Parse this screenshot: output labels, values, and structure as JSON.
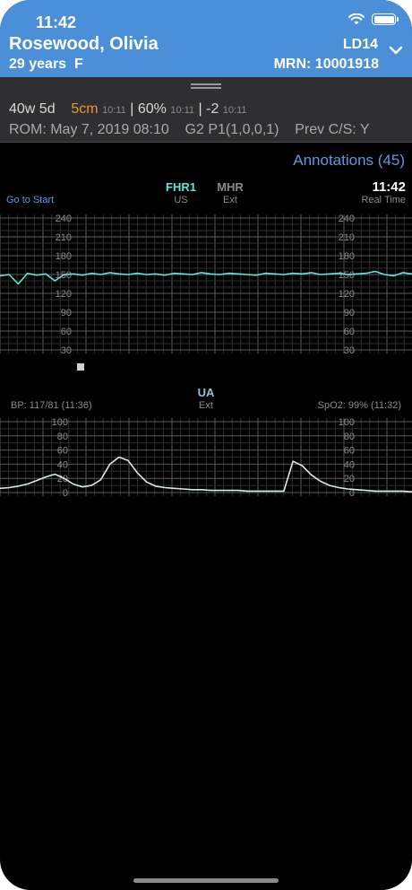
{
  "status_bar": {
    "time": "11:42"
  },
  "patient": {
    "name": "Rosewood, Olivia",
    "age_sex": "29 years  F",
    "room": "LD14",
    "mrn": "MRN: 10001918"
  },
  "labor": {
    "gestation": "40w 5d",
    "dilation": "5cm",
    "dilation_time": "10:11",
    "effacement": "60%",
    "effacement_time": "10:11",
    "station": "-2",
    "station_time": "10:11",
    "rom": "ROM: May 7, 2019 08:10",
    "gp": "G2 P1(1,0,0,1)",
    "prev_cs": "Prev C/S: Y"
  },
  "annotations_label": "Annotations (45)",
  "goto_label": "Go to Start",
  "fhr": {
    "primary_label": "FHR1",
    "primary_source": "US",
    "secondary_label": "MHR",
    "secondary_source": "Ext",
    "time": "11:42",
    "time_label": "Real Time",
    "ticks": [
      "240",
      "210",
      "180",
      "150",
      "120",
      "90",
      "60",
      "30"
    ]
  },
  "ua": {
    "label": "UA",
    "source": "Ext",
    "bp": "BP: 117/81 (11:36)",
    "spo2": "SpO2: 99% (11:32)",
    "ticks": [
      "100",
      "80",
      "60",
      "40",
      "20",
      "0"
    ]
  },
  "colors": {
    "header": "#4a8fd8",
    "fhr_trace": "#5ee6d6",
    "ua_trace": "#d8e8ec",
    "accent_orange": "#f0932b",
    "link_blue": "#5b9be0"
  },
  "chart_data": [
    {
      "type": "line",
      "title": "FHR1",
      "ylim": [
        30,
        240
      ],
      "series": [
        {
          "name": "FHR1",
          "values": [
            148,
            150,
            135,
            152,
            149,
            151,
            140,
            150,
            151,
            149,
            152,
            150,
            153,
            151,
            150,
            152,
            150,
            151,
            149,
            152,
            151,
            150,
            153,
            151,
            150,
            152,
            151,
            150,
            149,
            152,
            151,
            150,
            152,
            151,
            153,
            150,
            151,
            152,
            150,
            151,
            152,
            155,
            150,
            148,
            153,
            151
          ]
        }
      ],
      "grid": true
    },
    {
      "type": "line",
      "title": "UA",
      "ylim": [
        0,
        100
      ],
      "series": [
        {
          "name": "UA",
          "values": [
            6,
            7,
            9,
            12,
            17,
            22,
            26,
            20,
            12,
            8,
            10,
            18,
            40,
            50,
            45,
            28,
            15,
            9,
            7,
            6,
            5,
            4,
            4,
            3,
            3,
            3,
            3,
            2,
            2,
            2,
            2,
            2,
            44,
            38,
            25,
            16,
            10,
            7,
            5,
            4,
            3,
            2,
            2,
            2,
            2,
            1
          ]
        }
      ],
      "grid": true
    }
  ]
}
